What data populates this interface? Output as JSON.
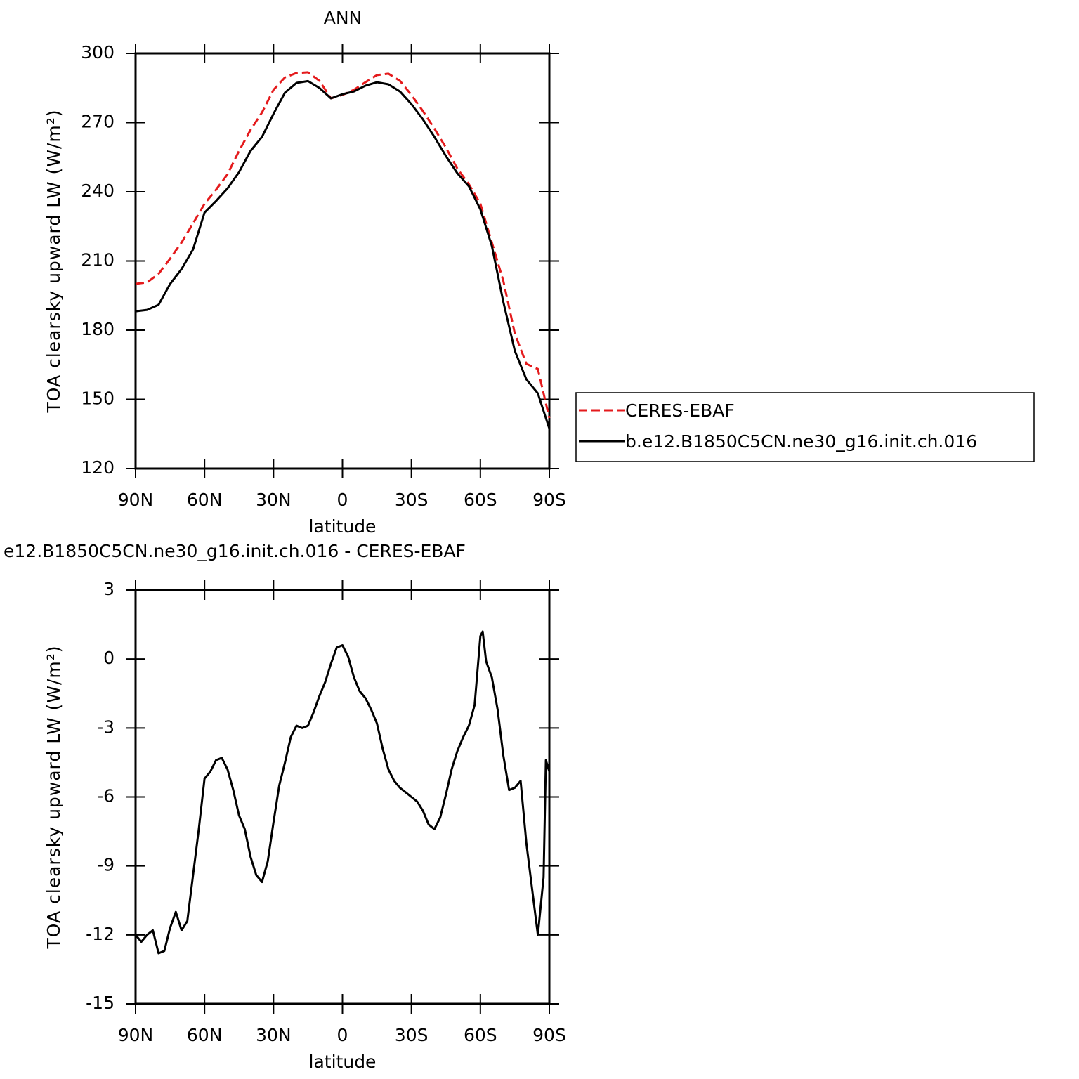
{
  "chart_data": [
    {
      "type": "line",
      "title": "ANN",
      "xlabel": "latitude",
      "ylabel": "TOA clearsky upward LW (W/m²)",
      "x": [
        90,
        85,
        80,
        75,
        70,
        65,
        60,
        55,
        50,
        45,
        40,
        35,
        30,
        25,
        20,
        15,
        10,
        5,
        0,
        -5,
        -10,
        -15,
        -20,
        -25,
        -30,
        -35,
        -40,
        -45,
        -50,
        -55,
        -60,
        -65,
        -70,
        -75,
        -80,
        -85,
        -90
      ],
      "xlim": [
        90,
        -90
      ],
      "xticks": [
        {
          "value": 90,
          "label": "90N"
        },
        {
          "value": 60,
          "label": "60N"
        },
        {
          "value": 30,
          "label": "30N"
        },
        0,
        {
          "value": -30,
          "label": "30S"
        },
        {
          "value": -60,
          "label": "60S"
        },
        {
          "value": -90,
          "label": "90S"
        }
      ],
      "ylim": [
        120,
        300
      ],
      "yticks": [
        120,
        150,
        180,
        210,
        240,
        270,
        300
      ],
      "legend": "right",
      "series": [
        {
          "name": "CERES-EBAF",
          "color": "#e41a1c",
          "dashed": true,
          "values": [
            200.1,
            200.7,
            204.4,
            211,
            218,
            226.3,
            234.8,
            240.9,
            247.6,
            257.7,
            266.8,
            274.4,
            284.2,
            289.6,
            291.5,
            291.8,
            288.1,
            280.5,
            282,
            284.2,
            287.5,
            290.6,
            291.2,
            288.1,
            282,
            275,
            267.4,
            259.2,
            250,
            243.3,
            234.8,
            218,
            201.3,
            178.5,
            165.4,
            163.2,
            141.9
          ]
        },
        {
          "name": "b.e12.B1850C5CN.ne30_g16.init.ch.016",
          "color": "#000000",
          "dashed": false,
          "values": [
            188.2,
            188.8,
            191,
            200,
            206.5,
            215,
            231,
            236,
            241.5,
            248.5,
            257.7,
            263.8,
            273.8,
            283,
            287.2,
            288,
            285,
            280.5,
            282.3,
            283.5,
            286,
            287.5,
            286.6,
            283.5,
            278,
            271.4,
            263.8,
            255.5,
            248,
            242.4,
            232.4,
            216.5,
            192.2,
            171,
            158.7,
            152.6,
            137.3
          ]
        }
      ]
    },
    {
      "type": "line",
      "title": "e12.B1850C5CN.ne30_g16.init.ch.016 - CERES-EBAF",
      "xlabel": "latitude",
      "ylabel": "TOA clearsky upward LW (W/m²)",
      "x": [
        90,
        87.5,
        85,
        82.5,
        80,
        77.5,
        75,
        72.5,
        70,
        67.5,
        65,
        62.5,
        60,
        57.5,
        55,
        52.5,
        50,
        47.5,
        45,
        42.5,
        40,
        37.5,
        35,
        32.5,
        30,
        27.5,
        25,
        22.5,
        20,
        17.5,
        15,
        12.5,
        10,
        7.5,
        5,
        2.5,
        0,
        -2.5,
        -5,
        -7.5,
        -10,
        -12.5,
        -15,
        -17.5,
        -20,
        -22.5,
        -25,
        -27.5,
        -30,
        -32.5,
        -35,
        -37.5,
        -40,
        -42.5,
        -45,
        -47.5,
        -50,
        -52.5,
        -55,
        -57.5,
        -60,
        -61,
        -62.5,
        -65,
        -67.5,
        -70,
        -72.5,
        -75,
        -77.5,
        -80,
        -82.5,
        -85,
        -87.5,
        -88.5,
        -90
      ],
      "xlim": [
        90,
        -90
      ],
      "xticks": [
        {
          "value": 90,
          "label": "90N"
        },
        {
          "value": 60,
          "label": "60N"
        },
        {
          "value": 30,
          "label": "30N"
        },
        0,
        {
          "value": -30,
          "label": "30S"
        },
        {
          "value": -60,
          "label": "60S"
        },
        {
          "value": -90,
          "label": "90S"
        }
      ],
      "ylim": [
        -15,
        3
      ],
      "yticks": [
        -15,
        -12,
        -9,
        -6,
        -3,
        0,
        3
      ],
      "series": [
        {
          "color": "#000000",
          "values": [
            -12,
            -12.3,
            -12,
            -11.8,
            -12.8,
            -12.7,
            -11.7,
            -11,
            -11.8,
            -11.4,
            -9.4,
            -7.4,
            -5.2,
            -4.9,
            -4.4,
            -4.3,
            -4.8,
            -5.7,
            -6.8,
            -7.4,
            -8.6,
            -9.4,
            -9.7,
            -8.8,
            -7.1,
            -5.5,
            -4.5,
            -3.4,
            -2.9,
            -3,
            -2.9,
            -2.3,
            -1.6,
            -1,
            -0.2,
            0.5,
            0.6,
            0.1,
            -0.8,
            -1.4,
            -1.7,
            -2.2,
            -2.8,
            -3.9,
            -4.8,
            -5.3,
            -5.6,
            -5.8,
            -6,
            -6.2,
            -6.6,
            -7.2,
            -7.4,
            -6.9,
            -5.9,
            -4.8,
            -4,
            -3.4,
            -2.9,
            -2,
            1,
            1.2,
            -0.1,
            -0.8,
            -2.2,
            -4.2,
            -5.7,
            -5.6,
            -5.3,
            -8,
            -10,
            -12,
            -9.5,
            -4.4,
            -4.9
          ]
        }
      ]
    }
  ]
}
